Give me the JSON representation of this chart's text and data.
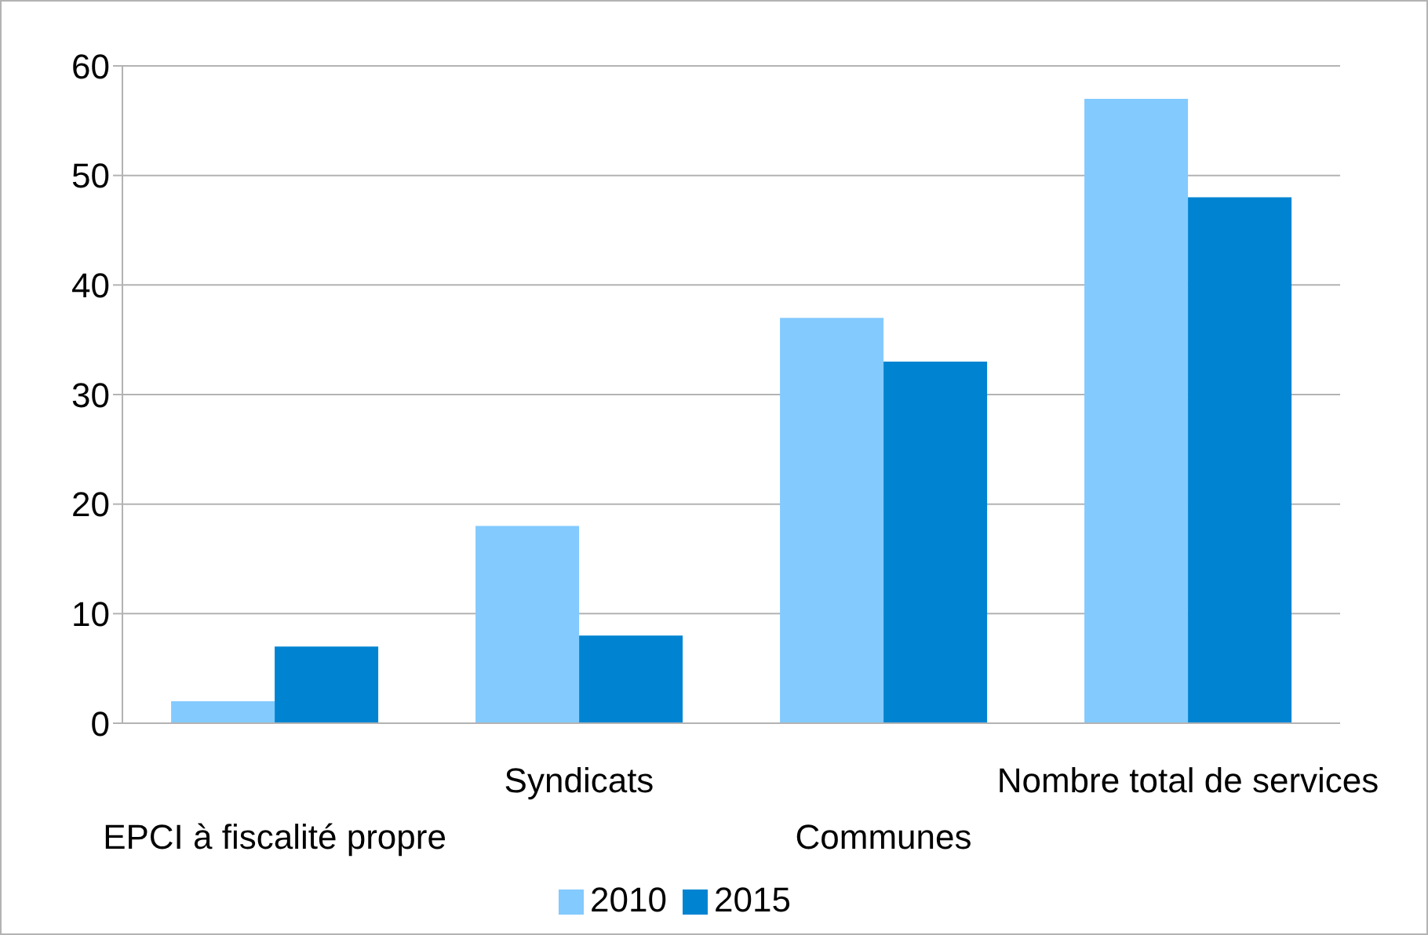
{
  "chart_data": {
    "type": "bar",
    "categories": [
      "EPCI à fiscalité propre",
      "Syndicats",
      "Communes",
      "Nombre total de services"
    ],
    "series": [
      {
        "name": "2010",
        "color": "#83caff",
        "values": [
          2,
          18,
          37,
          57
        ]
      },
      {
        "name": "2015",
        "color": "#0084d1",
        "values": [
          7,
          8,
          33,
          48
        ]
      }
    ],
    "ylim": [
      0,
      60
    ],
    "yticks": [
      0,
      10,
      20,
      30,
      40,
      50,
      60
    ],
    "grid": "y",
    "legend": "bottom"
  }
}
